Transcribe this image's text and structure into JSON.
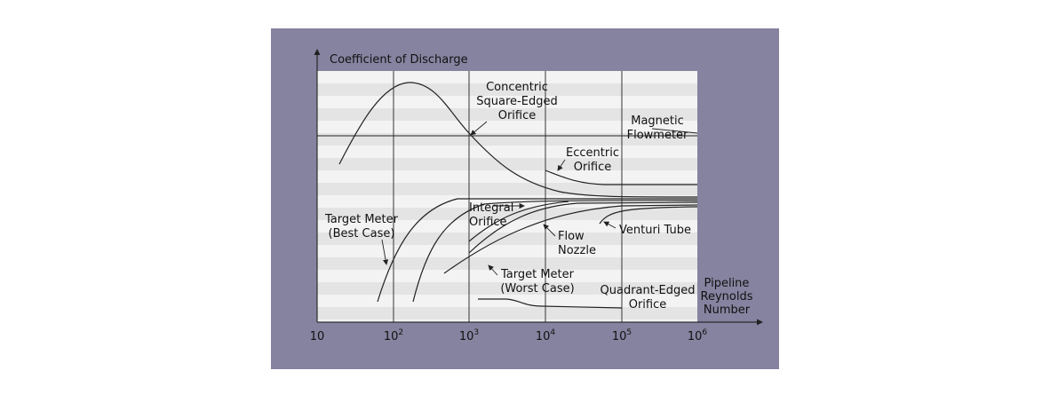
{
  "y_axis": {
    "title": "Coefficient of Discharge"
  },
  "x_axis": {
    "title": [
      "Pipeline",
      "Reynolds",
      "Number"
    ],
    "ticks": [
      {
        "base": "10"
      },
      {
        "base": "10",
        "exp": "2"
      },
      {
        "base": "10",
        "exp": "3"
      },
      {
        "base": "10",
        "exp": "4"
      },
      {
        "base": "10",
        "exp": "5"
      },
      {
        "base": "10",
        "exp": "6"
      }
    ]
  },
  "labels": {
    "concentric": [
      "Concentric",
      "Square-Edged",
      "Orifice"
    ],
    "magnetic": [
      "Magnetic",
      "Flowmeter"
    ],
    "eccentric": [
      "Eccentric",
      "Orifice"
    ],
    "integral": [
      "Integral",
      "Orifice"
    ],
    "target_best": [
      "Target Meter",
      "(Best Case)"
    ],
    "flow_nozzle": [
      "Flow",
      "Nozzle"
    ],
    "venturi": [
      "Venturi Tube"
    ],
    "target_worst": [
      "Target Meter",
      "(Worst Case)"
    ],
    "quadrant": [
      "Quadrant-Edged",
      "Orifice"
    ]
  }
}
